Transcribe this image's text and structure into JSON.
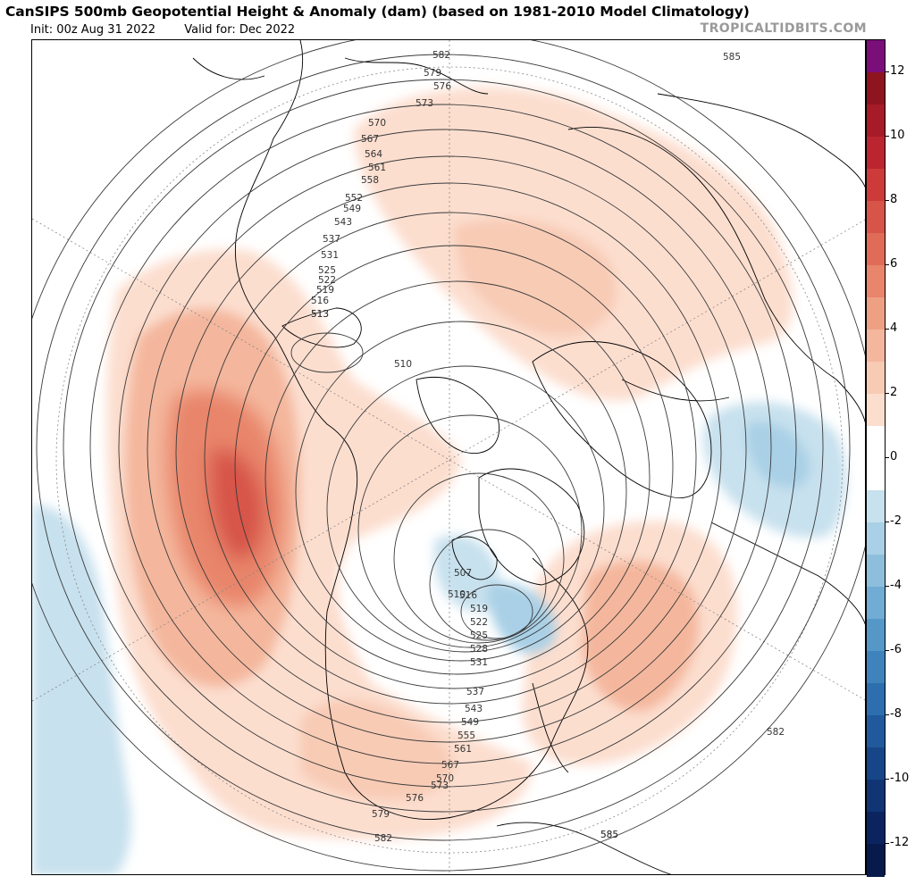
{
  "header": {
    "title": "CanSIPS 500mb Geopotential Height & Anomaly (dam) (based on 1981-2010 Model Climatology)",
    "init": "Init: 00z Aug 31 2022",
    "valid": "Valid for: Dec 2022",
    "credit": "TROPICALTIDBITS.COM"
  },
  "colorbar": {
    "levels": [
      {
        "range": "12 to 13",
        "color": "#7a0f7a"
      },
      {
        "range": "11 to 12",
        "color": "#8e1420"
      },
      {
        "range": "10 to 11",
        "color": "#a51b27"
      },
      {
        "range": "9 to 10",
        "color": "#bb2530"
      },
      {
        "range": "8 to 9",
        "color": "#cc3a3a"
      },
      {
        "range": "7 to 8",
        "color": "#d75448"
      },
      {
        "range": "6 to 7",
        "color": "#e06c58"
      },
      {
        "range": "5 to 6",
        "color": "#e8856b"
      },
      {
        "range": "4 to 5",
        "color": "#eea083"
      },
      {
        "range": "3 to 4",
        "color": "#f4b79d"
      },
      {
        "range": "2 to 3",
        "color": "#f8cbb5"
      },
      {
        "range": "1 to 2",
        "color": "#fcdecf"
      },
      {
        "range": "0 to 1",
        "color": "#ffffff"
      },
      {
        "range": "-1 to 0",
        "color": "#ffffff"
      },
      {
        "range": "-2 to -1",
        "color": "#c7e1ee"
      },
      {
        "range": "-3 to -2",
        "color": "#a9d0e6"
      },
      {
        "range": "-4 to -3",
        "color": "#8dbfdd"
      },
      {
        "range": "-5 to -4",
        "color": "#70acd3"
      },
      {
        "range": "-6 to -5",
        "color": "#5598c8"
      },
      {
        "range": "-7 to -6",
        "color": "#3f83bc"
      },
      {
        "range": "-8 to -7",
        "color": "#2d6eae"
      },
      {
        "range": "-9 to -8",
        "color": "#205a9c"
      },
      {
        "range": "-10 to -9",
        "color": "#174688"
      },
      {
        "range": "-11 to -10",
        "color": "#103474"
      },
      {
        "range": "-12 to -11",
        "color": "#0b2460"
      },
      {
        "range": "-13 to -12",
        "color": "#081a4c"
      }
    ],
    "tick_labels": [
      "12",
      "10",
      "8",
      "6",
      "4",
      "2",
      "0",
      "-2",
      "-4",
      "-6",
      "-8",
      "-10",
      "-12"
    ]
  },
  "map": {
    "colors": {
      "land_outline": "#000000",
      "contour": "#3a3a3a",
      "label": "#333333"
    },
    "contour_labels": [
      "513",
      "510",
      "516",
      "519",
      "522",
      "525",
      "528",
      "531",
      "537",
      "543",
      "549",
      "555",
      "561",
      "567",
      "570",
      "573",
      "576",
      "579",
      "582",
      "585",
      "552",
      "549",
      "543",
      "537",
      "531",
      "525",
      "522",
      "519",
      "516",
      "513",
      "510",
      "507",
      "570",
      "567",
      "564",
      "561",
      "558",
      "573",
      "576",
      "579",
      "582",
      "585",
      "582",
      "585"
    ]
  }
}
